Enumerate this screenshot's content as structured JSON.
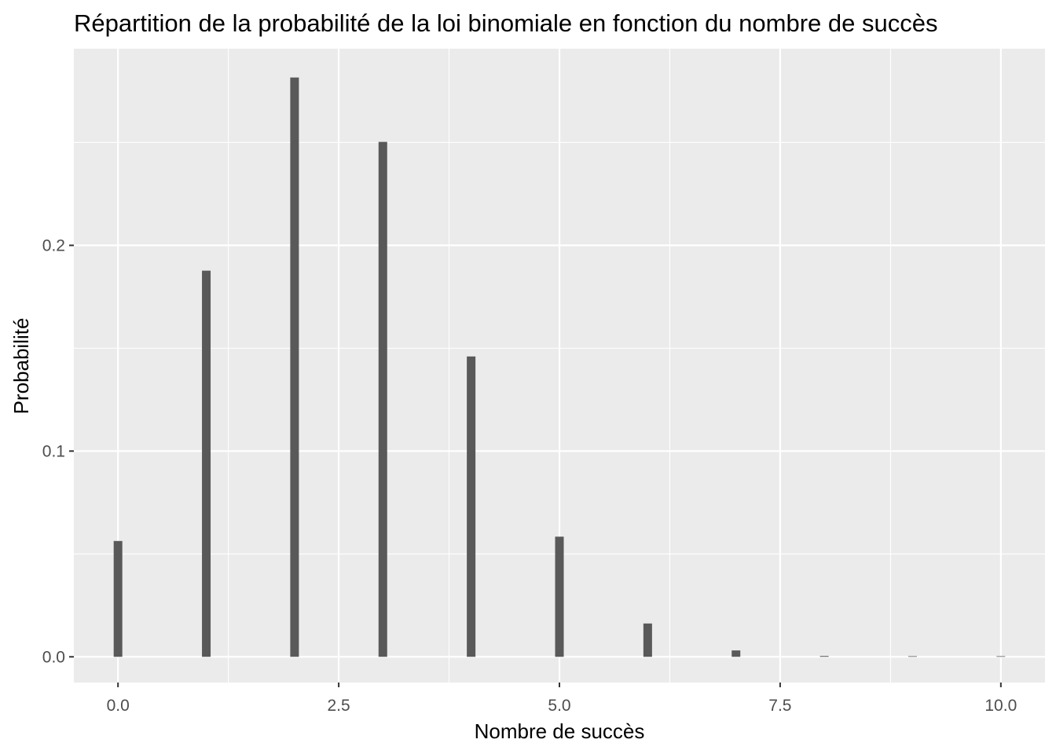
{
  "chart_data": {
    "type": "bar",
    "title": "Répartition de la probabilité de la loi binomiale en fonction du nombre de succès",
    "xlabel": "Nombre de succès",
    "ylabel": "Probabilité",
    "x": [
      0,
      1,
      2,
      3,
      4,
      5,
      6,
      7,
      8,
      9,
      10
    ],
    "values": [
      0.0563,
      0.1877,
      0.2816,
      0.2503,
      0.146,
      0.0584,
      0.0162,
      0.0031,
      0.0004,
      3e-05,
      1e-06
    ],
    "xlim": [
      -0.5,
      10.5
    ],
    "ylim": [
      -0.0125,
      0.2956
    ],
    "x_ticks": [
      0,
      2.5,
      5,
      7.5,
      10
    ],
    "x_tick_labels": [
      "0.0",
      "2.5",
      "5.0",
      "7.5",
      "10.0"
    ],
    "y_ticks": [
      0,
      0.1,
      0.2
    ],
    "y_tick_labels": [
      "0.0",
      "0.1",
      "0.2"
    ],
    "grid": true,
    "colors": {
      "panel_background": "#EBEBEB",
      "grid_major": "#FFFFFF",
      "bar_fill": "#595959",
      "tick_text": "#4D4D4D"
    }
  }
}
